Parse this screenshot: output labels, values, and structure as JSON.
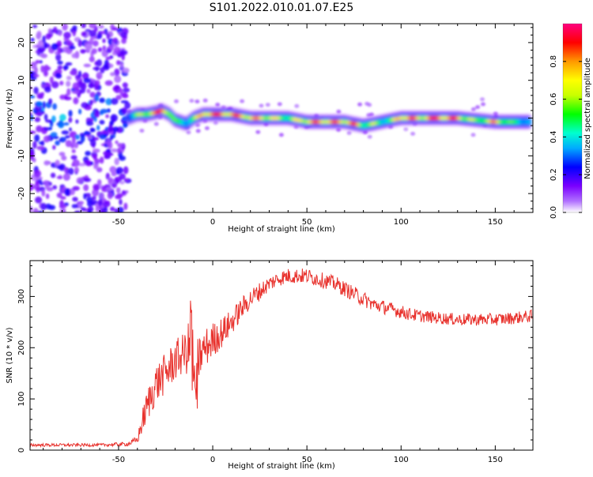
{
  "figure_title": "S101.2022.010.01.07.E25",
  "colors": {
    "snr_line": "#e8322d",
    "axis": "#000000",
    "background": "#ffffff"
  },
  "chart_data": [
    {
      "type": "heatmap",
      "title": "",
      "xlabel": "Height of straight line (km)",
      "ylabel": "Frequency (Hz)",
      "xlim": [
        -97,
        170
      ],
      "ylim": [
        -25,
        25
      ],
      "x_ticks": [
        -50,
        0,
        50,
        100,
        150
      ],
      "y_ticks": [
        -20,
        -10,
        0,
        10,
        20
      ],
      "grid": false,
      "colorbar": {
        "label": "Normalized spectral amplitude",
        "range": [
          0,
          1
        ],
        "ticks": [
          0.0,
          0.2,
          0.4,
          0.6,
          0.8
        ],
        "colormap": "rainbow (white-violet-blue-cyan-green-yellow-orange-red-magenta)"
      },
      "ridge": {
        "x": [
          -45,
          -40,
          -35,
          -30,
          -27,
          -23,
          -20,
          -17,
          -14,
          -10,
          -5,
          0,
          10,
          20,
          30,
          40,
          50,
          60,
          70,
          75,
          80,
          85,
          90,
          95,
          100,
          105,
          110,
          115,
          120,
          130,
          140,
          150,
          160,
          168
        ],
        "freq": [
          0,
          1,
          1,
          1.5,
          2,
          1,
          -0.5,
          -1,
          -1.5,
          0,
          1,
          1,
          1,
          0,
          0,
          0,
          -1,
          -1,
          -1,
          -1.5,
          -2,
          -1.5,
          -1,
          -0.5,
          0,
          0,
          0,
          0,
          0,
          0,
          -0.5,
          -1,
          -1,
          -1
        ],
        "amplitude": [
          0.25,
          0.6,
          0.75,
          0.9,
          0.95,
          0.8,
          0.6,
          0.5,
          0.45,
          0.6,
          0.9,
          0.95,
          0.9,
          0.85,
          0.8,
          0.6,
          0.85,
          0.9,
          0.85,
          0.95,
          0.6,
          0.7,
          0.5,
          0.6,
          0.9,
          0.95,
          0.75,
          0.95,
          0.95,
          0.9,
          0.6,
          0.85,
          0.55,
          0.4
        ]
      },
      "noise_region": {
        "x_range": [
          -97,
          -45
        ],
        "description": "scattered low-amplitude noise (0.0–0.4)"
      }
    },
    {
      "type": "line",
      "title": "",
      "xlabel": "Height of straight line (km)",
      "ylabel": "SNR (10 * v/v)",
      "xlim": [
        -97,
        170
      ],
      "ylim": [
        0,
        370
      ],
      "x_ticks": [
        -50,
        0,
        50,
        100,
        150
      ],
      "y_ticks": [
        0,
        100,
        200,
        300
      ],
      "grid": false,
      "series": [
        {
          "x": [
            -97,
            -80,
            -60,
            -45,
            -40,
            -37,
            -34,
            -30,
            -25,
            -20,
            -15,
            -12,
            -10,
            -5,
            0,
            5,
            10,
            15,
            20,
            25,
            30,
            35,
            40,
            45,
            50,
            55,
            60,
            65,
            70,
            75,
            80,
            85,
            90,
            95,
            100,
            105,
            110,
            120,
            130,
            140,
            150,
            160,
            170
          ],
          "y": [
            10,
            10,
            10,
            12,
            20,
            60,
            95,
            130,
            150,
            175,
            190,
            200,
            160,
            195,
            215,
            230,
            250,
            275,
            295,
            310,
            325,
            335,
            340,
            340,
            340,
            335,
            330,
            325,
            315,
            305,
            295,
            285,
            280,
            275,
            270,
            265,
            262,
            258,
            255,
            255,
            255,
            258,
            262
          ],
          "noise_amplitude": [
            3,
            3,
            3,
            4,
            8,
            25,
            35,
            40,
            40,
            40,
            40,
            60,
            50,
            40,
            35,
            30,
            25,
            22,
            20,
            18,
            15,
            15,
            15,
            15,
            15,
            15,
            15,
            15,
            15,
            15,
            15,
            14,
            14,
            13,
            13,
            13,
            12,
            12,
            12,
            12,
            12,
            12,
            12
          ]
        }
      ]
    }
  ]
}
